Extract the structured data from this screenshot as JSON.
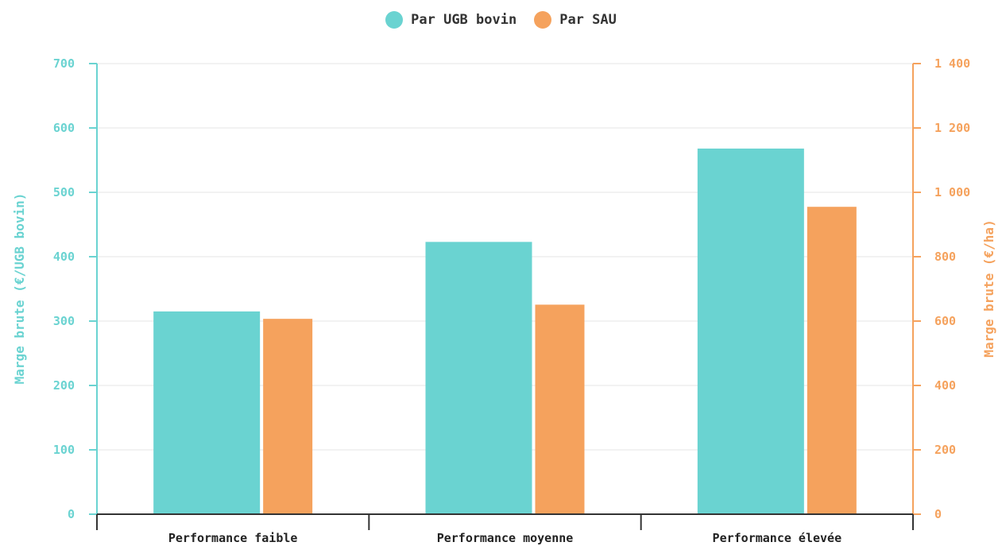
{
  "colors": {
    "primary": "#6ad3d1",
    "secondary": "#f5a25d",
    "grid": "#e6e6e6",
    "xaxis": "#333333"
  },
  "chart_data": {
    "type": "bar",
    "categories": [
      "Performance faible",
      "Performance moyenne",
      "Performance élevée"
    ],
    "series": [
      {
        "name": "Par UGB bovin",
        "axis": "left",
        "values": [
          315,
          423,
          568
        ]
      },
      {
        "name": "Par SAU",
        "axis": "right",
        "values": [
          607,
          651,
          955
        ]
      }
    ],
    "y_left": {
      "label": "Marge brute (€/UGB bovin)",
      "range": [
        0,
        700
      ],
      "ticks": [
        "0",
        "100",
        "200",
        "300",
        "400",
        "500",
        "600",
        "700"
      ]
    },
    "y_right": {
      "label": "Marge brute (€/ha)",
      "range": [
        0,
        1400
      ],
      "ticks": [
        "0",
        "200",
        "400",
        "600",
        "800",
        "1 000",
        "1 200",
        "1 400"
      ]
    },
    "grid": true,
    "legend_position": "top-center"
  }
}
